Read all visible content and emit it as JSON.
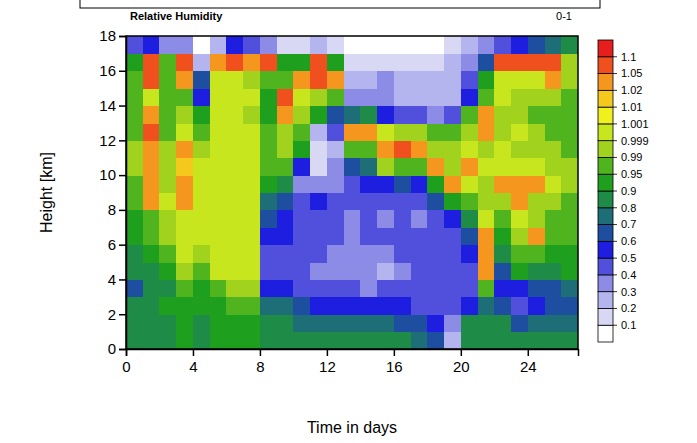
{
  "chart_data": {
    "type": "heatmap",
    "title": "Relative Humidity",
    "x_label": "Time in days",
    "y_label": "Height [km]",
    "xlim": [
      0,
      27
    ],
    "ylim": [
      0,
      18
    ],
    "xticks": [
      0,
      4,
      8,
      12,
      16,
      20,
      24
    ],
    "yticks": [
      0,
      2,
      4,
      6,
      8,
      10,
      12,
      14,
      16,
      18
    ],
    "x": [
      0.5,
      1.5,
      2.5,
      3.5,
      4.5,
      5.5,
      6.5,
      7.5,
      8.5,
      9.5,
      10.5,
      11.5,
      12.5,
      13.5,
      14.5,
      15.5,
      16.5,
      17.5,
      18.5,
      19.5,
      20.5,
      21.5,
      22.5,
      23.5,
      24.5,
      25.5,
      26.5
    ],
    "y": [
      0.5,
      1.5,
      2.5,
      3.5,
      4.5,
      5.5,
      6.5,
      7.5,
      8.5,
      9.5,
      10.5,
      11.5,
      12.5,
      13.5,
      14.5,
      15.5,
      16.5,
      17.5
    ],
    "values": [
      [
        0.85,
        0.85,
        0.8,
        0.6,
        0.8,
        0.85,
        0.9,
        0.9,
        0.95,
        0.98,
        0.99,
        0.99,
        0.98,
        0.95,
        0.95,
        0.95,
        0.9,
        0.4
      ],
      [
        0.85,
        0.85,
        0.85,
        0.8,
        0.85,
        0.9,
        0.95,
        0.95,
        1.03,
        1.04,
        1.02,
        1.03,
        1.05,
        1.03,
        1.0,
        1.06,
        1.08,
        0.5
      ],
      [
        0.85,
        0.85,
        0.9,
        0.85,
        0.9,
        0.95,
        0.99,
        0.995,
        0.999,
        0.995,
        0.99,
        0.99,
        0.98,
        0.95,
        0.95,
        0.95,
        0.95,
        0.3
      ],
      [
        0.9,
        0.9,
        0.9,
        0.95,
        0.99,
        0.999,
        1.0,
        1.0,
        1.02,
        1.03,
        1.01,
        1.02,
        1.0,
        0.99,
        0.95,
        1.02,
        1.06,
        0.3
      ],
      [
        0.85,
        0.85,
        0.9,
        0.9,
        0.95,
        0.99,
        0.999,
        0.999,
        0.999,
        1.0,
        0.999,
        0.99,
        0.95,
        0.9,
        0.5,
        0.6,
        0.2,
        0.05
      ],
      [
        0.9,
        0.9,
        0.9,
        0.95,
        0.999,
        1.0,
        1.0,
        1.0,
        1.0,
        1.0,
        1.0,
        1.0,
        1.0,
        0.999,
        0.999,
        1.0,
        1.04,
        0.2
      ],
      [
        0.9,
        0.9,
        0.95,
        0.99,
        1.0,
        1.0,
        1.0,
        1.0,
        1.0,
        1.0,
        1.0,
        1.0,
        0.999,
        0.999,
        0.999,
        1.0,
        1.05,
        0.5
      ],
      [
        0.9,
        0.9,
        0.95,
        0.99,
        1.0,
        0.999,
        1.0,
        1.0,
        1.0,
        0.999,
        0.999,
        1.0,
        0.999,
        0.99,
        0.999,
        0.99,
        1.03,
        0.4
      ],
      [
        0.8,
        0.8,
        0.7,
        0.5,
        0.45,
        0.45,
        0.5,
        0.6,
        0.7,
        0.9,
        0.95,
        0.95,
        0.95,
        0.9,
        0.9,
        0.95,
        1.05,
        0.3
      ],
      [
        0.8,
        0.8,
        0.7,
        0.5,
        0.45,
        0.4,
        0.5,
        0.5,
        0.6,
        0.8,
        0.95,
        0.99,
        0.99,
        1.02,
        1.05,
        0.95,
        0.9,
        0.1
      ],
      [
        0.8,
        0.7,
        0.6,
        0.45,
        0.4,
        0.4,
        0.4,
        0.4,
        0.45,
        0.3,
        0.5,
        0.9,
        0.95,
        0.99,
        1.0,
        1.02,
        0.9,
        0.1
      ],
      [
        0.8,
        0.7,
        0.5,
        0.4,
        0.35,
        0.4,
        0.4,
        0.45,
        0.5,
        0.3,
        0.1,
        0.1,
        0.2,
        0.9,
        0.99,
        1.06,
        1.05,
        0.2
      ],
      [
        0.8,
        0.7,
        0.5,
        0.4,
        0.3,
        0.35,
        0.4,
        0.4,
        0.4,
        0.35,
        0.3,
        0.2,
        0.4,
        0.6,
        0.95,
        1.04,
        0.9,
        0.1
      ],
      [
        0.8,
        0.7,
        0.5,
        0.4,
        0.3,
        0.3,
        0.3,
        0.35,
        0.4,
        0.45,
        0.6,
        0.95,
        1.02,
        0.7,
        0.3,
        0.2,
        0.1,
        0.05
      ],
      [
        0.8,
        0.7,
        0.5,
        0.35,
        0.3,
        0.3,
        0.4,
        0.4,
        0.4,
        0.5,
        0.7,
        0.95,
        1.04,
        0.8,
        0.3,
        0.2,
        0.1,
        0.05
      ],
      [
        0.8,
        0.7,
        0.5,
        0.4,
        0.2,
        0.3,
        0.4,
        0.35,
        0.4,
        0.5,
        0.99,
        1.03,
        1.0,
        0.5,
        0.3,
        0.3,
        0.1,
        0.05
      ],
      [
        0.8,
        0.6,
        0.5,
        0.4,
        0.3,
        0.4,
        0.4,
        0.4,
        0.45,
        0.6,
        0.95,
        1.05,
        0.99,
        0.4,
        0.2,
        0.2,
        0.1,
        0.05
      ],
      [
        0.7,
        0.6,
        0.4,
        0.4,
        0.4,
        0.4,
        0.4,
        0.35,
        0.4,
        0.5,
        0.95,
        1.02,
        0.99,
        0.4,
        0.2,
        0.2,
        0.1,
        0.05
      ],
      [
        0.6,
        0.5,
        0.4,
        0.4,
        0.4,
        0.4,
        0.4,
        0.4,
        0.6,
        0.9,
        1.03,
        0.99,
        0.95,
        0.3,
        0.2,
        0.2,
        0.1,
        0.05
      ],
      [
        0.2,
        0.3,
        0.4,
        0.4,
        0.4,
        0.4,
        0.4,
        0.5,
        0.9,
        1.03,
        0.99,
        0.99,
        0.95,
        0.4,
        0.2,
        0.2,
        0.2,
        0.1
      ],
      [
        0.8,
        0.8,
        0.5,
        0.4,
        0.4,
        0.5,
        0.6,
        0.8,
        0.95,
        1.0,
        1.03,
        0.999,
        0.99,
        0.95,
        0.5,
        0.4,
        0.3,
        0.2
      ],
      [
        0.85,
        0.8,
        0.7,
        0.95,
        1.02,
        1.03,
        1.02,
        1.0,
        0.99,
        0.99,
        0.999,
        0.99,
        1.02,
        1.03,
        0.95,
        0.9,
        0.6,
        0.3
      ],
      [
        0.85,
        0.8,
        0.6,
        0.5,
        0.6,
        0.8,
        0.9,
        0.95,
        0.99,
        1.02,
        1.0,
        0.999,
        0.99,
        0.99,
        0.999,
        1.0,
        1.06,
        0.4
      ],
      [
        0.85,
        0.6,
        0.4,
        0.5,
        0.9,
        0.95,
        0.99,
        0.999,
        1.03,
        1.02,
        0.999,
        0.99,
        1.0,
        0.99,
        0.99,
        0.999,
        1.06,
        0.5
      ],
      [
        0.8,
        0.7,
        0.5,
        0.6,
        0.8,
        0.95,
        1.02,
        0.99,
        0.99,
        1.02,
        1.0,
        0.99,
        0.99,
        0.95,
        0.99,
        1.0,
        1.05,
        0.6
      ],
      [
        0.8,
        0.7,
        0.6,
        0.6,
        0.8,
        0.9,
        0.95,
        0.95,
        0.99,
        0.999,
        0.99,
        0.99,
        0.95,
        0.95,
        0.99,
        1.02,
        1.05,
        0.7
      ],
      [
        0.8,
        0.7,
        0.6,
        0.7,
        0.9,
        0.9,
        0.95,
        0.95,
        0.95,
        0.99,
        0.99,
        0.95,
        0.95,
        0.95,
        0.95,
        0.99,
        0.99,
        0.8
      ]
    ],
    "colors": [
      "#ffffff",
      "#d8d8f4",
      "#b4b4ee",
      "#8c8ce6",
      "#5050dc",
      "#1e1ee0",
      "#1e4ea0",
      "#1e6e78",
      "#1e8c46",
      "#1ea01e",
      "#50b41e",
      "#a0d21e",
      "#c8e61e",
      "#f0f01e",
      "#f5c81e",
      "#f5961e",
      "#f0501e",
      "#e61e1e"
    ],
    "colorbar": {
      "title": "0-1",
      "ticks": [
        0.1,
        0.2,
        0.3,
        0.4,
        0.5,
        0.6,
        0.7,
        0.8,
        0.9,
        0.95,
        0.99,
        0.999,
        1.001,
        1.01,
        1.02,
        1.05,
        1.1
      ]
    }
  }
}
